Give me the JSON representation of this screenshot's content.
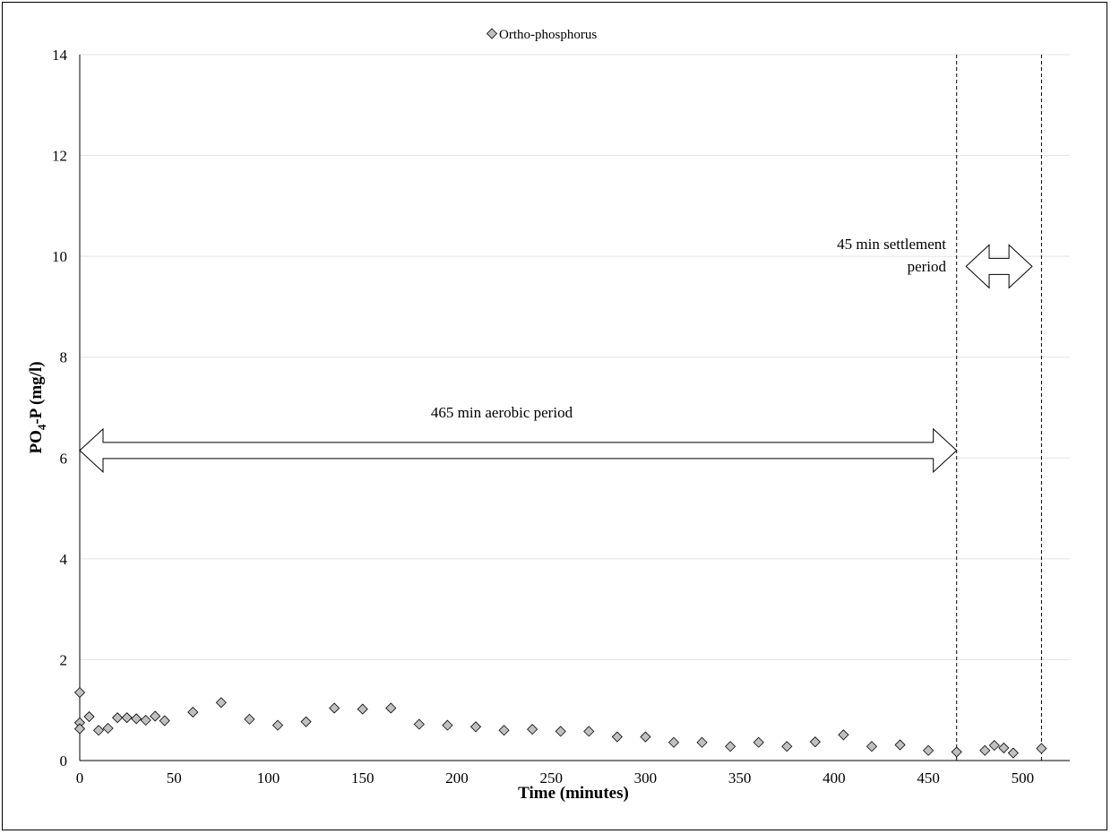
{
  "chart_data": {
    "type": "scatter",
    "title": "",
    "xlabel": "Time (minutes)",
    "ylabel_main": "PO",
    "ylabel_sub": "4",
    "ylabel_rest": "-P (mg/l)",
    "xlim": [
      0,
      525
    ],
    "ylim": [
      0,
      14
    ],
    "x_ticks": [
      0,
      50,
      100,
      150,
      200,
      250,
      300,
      350,
      400,
      450,
      500
    ],
    "y_ticks": [
      0,
      2,
      4,
      6,
      8,
      10,
      12,
      14
    ],
    "grid": "horizontal",
    "legend_position": "top-center",
    "series": [
      {
        "name": "Ortho-phosphorus",
        "marker": "diamond",
        "color": "#c0c0c0",
        "x": [
          0,
          0,
          0,
          5,
          10,
          15,
          20,
          25,
          30,
          35,
          40,
          45,
          60,
          75,
          90,
          105,
          120,
          135,
          150,
          165,
          180,
          195,
          210,
          225,
          240,
          255,
          270,
          285,
          300,
          315,
          330,
          345,
          360,
          375,
          390,
          405,
          420,
          435,
          450,
          465,
          480,
          485,
          490,
          495,
          510
        ],
        "y": [
          1.35,
          0.75,
          0.63,
          0.87,
          0.6,
          0.64,
          0.85,
          0.85,
          0.83,
          0.8,
          0.88,
          0.79,
          0.96,
          1.15,
          0.82,
          0.7,
          0.77,
          1.04,
          1.02,
          1.04,
          0.72,
          0.7,
          0.67,
          0.6,
          0.62,
          0.58,
          0.58,
          0.47,
          0.47,
          0.36,
          0.36,
          0.28,
          0.36,
          0.28,
          0.37,
          0.51,
          0.28,
          0.31,
          0.2,
          0.17,
          0.2,
          0.3,
          0.25,
          0.15,
          0.24
        ]
      }
    ],
    "vertical_lines": [
      {
        "x": 465,
        "style": "dashed"
      },
      {
        "x": 510,
        "style": "dashed"
      }
    ],
    "annotations": {
      "aerobic_label": "465 min aerobic period",
      "settlement_line1": "45 min settlement",
      "settlement_line2": "period"
    },
    "arrows": [
      {
        "from": 0,
        "to": 465,
        "y": 6.15
      },
      {
        "from": 470,
        "to": 505,
        "y": 9.8
      }
    ]
  }
}
